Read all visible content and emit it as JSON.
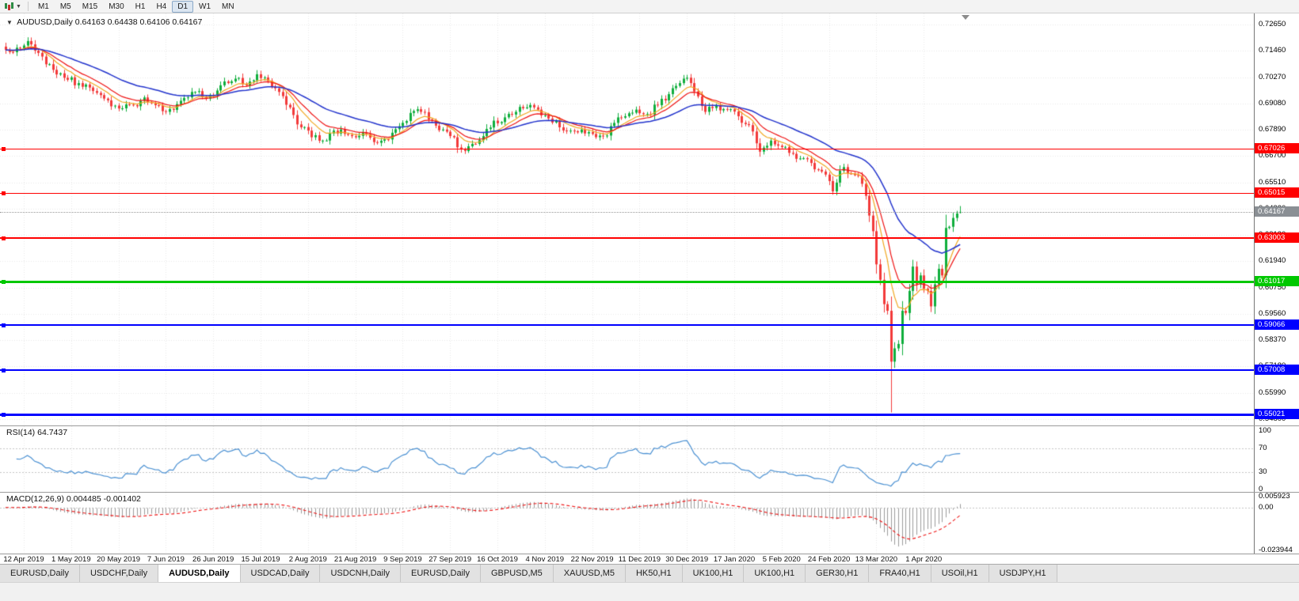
{
  "toolbar": {
    "timeframes": [
      "M1",
      "M5",
      "M15",
      "M30",
      "H1",
      "H4",
      "D1",
      "W1",
      "MN"
    ],
    "active_timeframe": "D1"
  },
  "chart": {
    "title": "AUDUSD,Daily",
    "ohlc_text": "0.64163 0.64438 0.64106 0.64167"
  },
  "chart_data": {
    "type": "candlestick",
    "symbol": "AUDUSD",
    "timeframe": "Daily",
    "bars": 263,
    "quote": {
      "open": "0.64163",
      "high": "0.64438",
      "low": "0.64106",
      "close": "0.64167"
    },
    "last_bar": {
      "open": 0.64163,
      "high": 0.64438,
      "low": 0.64106,
      "close": 0.64167
    },
    "price_axis": {
      "labels": [
        "0.72650",
        "0.71460",
        "0.70270",
        "0.69080",
        "0.67890",
        "0.66700",
        "0.65510",
        "0.64320",
        "0.63130",
        "0.61940",
        "0.60750",
        "0.59560",
        "0.58370",
        "0.57180",
        "0.55990",
        "0.54800"
      ]
    },
    "x_labels": [
      "12 Apr 2019",
      "1 May 2019",
      "20 May 2019",
      "7 Jun 2019",
      "26 Jun 2019",
      "15 Jul 2019",
      "2 Aug 2019",
      "21 Aug 2019",
      "9 Sep 2019",
      "27 Sep 2019",
      "16 Oct 2019",
      "4 Nov 2019",
      "22 Nov 2019",
      "11 Dec 2019",
      "30 Dec 2019",
      "17 Jan 2020",
      "5 Feb 2020",
      "24 Feb 2020",
      "13 Mar 2020",
      "1 Apr 2020"
    ],
    "x_label_step_bars": 13,
    "x_label_first_bar": 5,
    "close_anchors": [
      [
        0,
        0.715
      ],
      [
        3,
        0.716
      ],
      [
        5,
        0.717
      ],
      [
        7,
        0.7175
      ],
      [
        10,
        0.712
      ],
      [
        13,
        0.706
      ],
      [
        17,
        0.7015
      ],
      [
        20,
        0.7
      ],
      [
        23,
        0.698
      ],
      [
        27,
        0.693
      ],
      [
        31,
        0.6885
      ],
      [
        35,
        0.69
      ],
      [
        38,
        0.6935
      ],
      [
        41,
        0.69
      ],
      [
        44,
        0.687
      ],
      [
        48,
        0.692
      ],
      [
        52,
        0.696
      ],
      [
        55,
        0.693
      ],
      [
        59,
        0.699
      ],
      [
        63,
        0.702
      ],
      [
        66,
        0.699
      ],
      [
        69,
        0.704
      ],
      [
        72,
        0.701
      ],
      [
        75,
        0.696
      ],
      [
        78,
        0.689
      ],
      [
        81,
        0.68
      ],
      [
        84,
        0.6755
      ],
      [
        87,
        0.674
      ],
      [
        90,
        0.6785
      ],
      [
        93,
        0.677
      ],
      [
        96,
        0.6755
      ],
      [
        99,
        0.677
      ],
      [
        102,
        0.673
      ],
      [
        105,
        0.6745
      ],
      [
        108,
        0.6805
      ],
      [
        111,
        0.6865
      ],
      [
        114,
        0.687
      ],
      [
        117,
        0.683
      ],
      [
        120,
        0.679
      ],
      [
        123,
        0.6755
      ],
      [
        125,
        0.67
      ],
      [
        128,
        0.6725
      ],
      [
        131,
        0.676
      ],
      [
        134,
        0.683
      ],
      [
        137,
        0.6845
      ],
      [
        140,
        0.687
      ],
      [
        143,
        0.689
      ],
      [
        146,
        0.688
      ],
      [
        149,
        0.684
      ],
      [
        152,
        0.68
      ],
      [
        155,
        0.6785
      ],
      [
        158,
        0.679
      ],
      [
        161,
        0.677
      ],
      [
        164,
        0.676
      ],
      [
        167,
        0.682
      ],
      [
        170,
        0.685
      ],
      [
        173,
        0.688
      ],
      [
        176,
        0.686
      ],
      [
        179,
        0.69
      ],
      [
        182,
        0.695
      ],
      [
        185,
        0.7
      ],
      [
        186,
        0.702
      ],
      [
        188,
        0.7
      ],
      [
        190,
        0.694
      ],
      [
        192,
        0.687
      ],
      [
        195,
        0.69
      ],
      [
        198,
        0.688
      ],
      [
        201,
        0.685
      ],
      [
        204,
        0.681
      ],
      [
        207,
        0.669
      ],
      [
        210,
        0.674
      ],
      [
        213,
        0.671
      ],
      [
        216,
        0.668
      ],
      [
        219,
        0.666
      ],
      [
        222,
        0.661
      ],
      [
        224,
        0.66
      ],
      [
        227,
        0.651
      ],
      [
        228,
        0.655
      ],
      [
        230,
        0.662
      ],
      [
        232,
        0.659
      ],
      [
        234,
        0.658
      ],
      [
        236,
        0.649
      ],
      [
        238,
        0.633
      ],
      [
        239,
        0.618
      ],
      [
        240,
        0.611
      ],
      [
        241,
        0.6
      ],
      [
        242,
        0.597
      ],
      [
        243,
        0.574
      ],
      [
        244,
        0.58
      ],
      [
        245,
        0.582
      ],
      [
        246,
        0.597
      ],
      [
        247,
        0.596
      ],
      [
        248,
        0.606
      ],
      [
        249,
        0.617
      ],
      [
        250,
        0.609
      ],
      [
        251,
        0.613
      ],
      [
        252,
        0.607
      ],
      [
        253,
        0.606
      ],
      [
        254,
        0.599
      ],
      [
        255,
        0.609
      ],
      [
        256,
        0.616
      ],
      [
        257,
        0.613
      ],
      [
        258,
        0.6345
      ],
      [
        259,
        0.635
      ],
      [
        260,
        0.639
      ],
      [
        261,
        0.641
      ],
      [
        262,
        0.64167
      ]
    ],
    "special_wicks": [
      [
        243,
        0.551
      ]
    ],
    "moving_averages": [
      {
        "name": "fast",
        "period": 8,
        "type": "ema",
        "color": "#f0a61e"
      },
      {
        "name": "mid",
        "period": 13,
        "type": "ema",
        "color": "#ee1111"
      },
      {
        "name": "slow",
        "period": 34,
        "type": "ema",
        "color": "#2233cc"
      }
    ],
    "hlines": [
      {
        "price": 0.67026,
        "label": "0.67026",
        "color": "#ff0000",
        "width": 1
      },
      {
        "price": 0.65015,
        "label": "0.65015",
        "color": "#ff0000",
        "width": 1
      },
      {
        "price": 0.63003,
        "label": "0.63003",
        "color": "#ff0000",
        "width": 2
      },
      {
        "price": 0.61017,
        "label": "0.61017",
        "color": "#00c800",
        "width": 3
      },
      {
        "price": 0.59066,
        "label": "0.59066",
        "color": "#0000ff",
        "width": 2
      },
      {
        "price": 0.57008,
        "label": "0.57008",
        "color": "#0000ff",
        "width": 2
      },
      {
        "price": 0.55021,
        "label": "0.55021",
        "color": "#0000ff",
        "width": 3
      }
    ],
    "current_price": {
      "value": 0.64167,
      "label": "0.64167",
      "color": "#8a8f94"
    },
    "rsi": {
      "label": "RSI(14)",
      "value_text": "64.7437",
      "period": 14,
      "levels": [
        100,
        70,
        30,
        0
      ],
      "color": "#4a90d2"
    },
    "macd": {
      "label": "MACD(12,26,9)",
      "values_text": "0.004485 -0.001402",
      "axis_labels": [
        "0.005923",
        "0.00",
        "-0.023944"
      ],
      "hist_color": "#9b9b9b",
      "signal_color": "#ee1111"
    },
    "colors": {
      "up": "#0fae3c",
      "down": "#f23a3a",
      "grid": "#e8e8e8",
      "background": "#ffffff"
    }
  },
  "tabs": [
    "EURUSD,Daily",
    "USDCHF,Daily",
    "AUDUSD,Daily",
    "USDCAD,Daily",
    "USDCNH,Daily",
    "EURUSD,Daily",
    "GBPUSD,M5",
    "XAUUSD,M5",
    "HK50,H1",
    "UK100,H1",
    "UK100,H1",
    "GER30,H1",
    "FRA40,H1",
    "USOil,H1",
    "USDJPY,H1"
  ],
  "active_tab_index": 2
}
